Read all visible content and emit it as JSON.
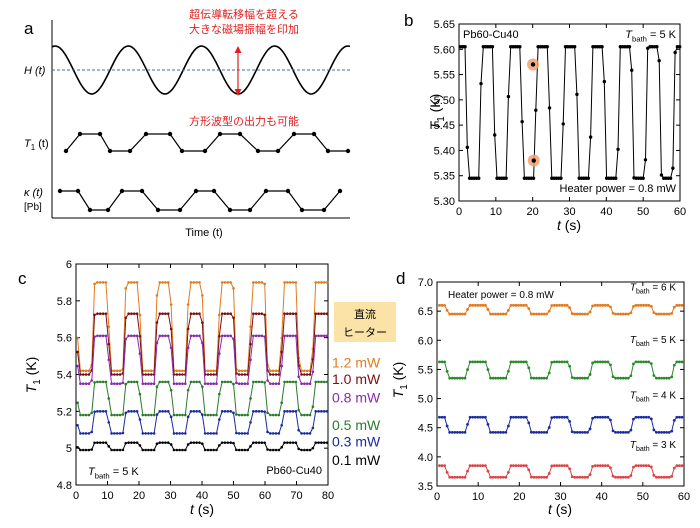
{
  "panels": {
    "a": {
      "letter": "a",
      "title": "",
      "labels": {
        "H": "H (t)",
        "T1": "T",
        "T1sub": "1",
        "T1tail": " (t)",
        "kappa": "κ (t)",
        "kappa_sub": "[Pb]",
        "xlabel": "Time (t)"
      },
      "annotations": {
        "jp1_line1": "超伝導転移幅を超える",
        "jp1_line2": "大きな磁場振幅を印加",
        "jp2": "方形波型の出力も可能"
      }
    },
    "b": {
      "letter": "b",
      "label_tl": "Pb60-Cu40",
      "label_tr": "T",
      "label_tr_sub": "bath",
      "label_tr_tail": " = 5 K",
      "note": "Heater power = 0.8 mW"
    },
    "c": {
      "letter": "c",
      "box_line1": "直流",
      "box_line2": "ヒーター",
      "tbath": "T",
      "tbath_sub": "bath",
      "tbath_tail": " = 5 K",
      "sample": "Pb60-Cu40"
    },
    "d": {
      "letter": "d",
      "note": "Heater power = 0.8 mW"
    }
  },
  "colors": {
    "annotation_red": "#e02020",
    "dashed_blue": "#3a6fb0",
    "orange": "#e07b1f",
    "darkred": "#7a1010",
    "purple": "#8a2aa8",
    "green": "#2a7a2a",
    "blue": "#1a2a9a",
    "black": "#000000",
    "green_d": "#2a8a2a",
    "blue_d": "#1a2aa0",
    "red_d": "#d94444",
    "box_fill": "#fbe3a8"
  },
  "chart_data": [
    {
      "panel": "a",
      "type": "line",
      "title": "",
      "xlabel": "Time (t)",
      "ylabel": "",
      "series": [
        {
          "name": "H (t)",
          "shape": "sinusoid"
        },
        {
          "name": "T1 (t)",
          "shape": "square wave"
        },
        {
          "name": "κ (t) [Pb]",
          "shape": "square wave"
        }
      ]
    },
    {
      "panel": "b",
      "type": "line",
      "xlabel": "t (s)",
      "ylabel": "T1 (K)",
      "xlim": [
        0,
        60
      ],
      "ylim": [
        5.3,
        5.65
      ],
      "xticks": [
        "0",
        "10",
        "20",
        "30",
        "40",
        "50",
        "60"
      ],
      "yticks": [
        "5.30",
        "5.35",
        "5.40",
        "5.45",
        "5.50",
        "5.55",
        "5.60",
        "5.65"
      ],
      "period_s": 7.5,
      "series": [
        {
          "high": 5.605,
          "low": 5.345,
          "start": 0,
          "end": 60
        }
      ],
      "highlights": [
        {
          "x": 20.1,
          "y": 5.57
        },
        {
          "x": 20.3,
          "y": 5.38
        }
      ]
    },
    {
      "panel": "c",
      "type": "line",
      "xlabel": "t (s)",
      "ylabel": "T1 (K)",
      "xlim": [
        0,
        80
      ],
      "ylim": [
        4.8,
        6.0
      ],
      "xticks": [
        "0",
        "10",
        "20",
        "30",
        "40",
        "50",
        "60",
        "70",
        "80"
      ],
      "yticks": [
        "4.8",
        "5",
        "5.2",
        "5.4",
        "5.6",
        "5.8",
        "6"
      ],
      "period_s": 10,
      "series": [
        {
          "name": "1.2 mW",
          "high": 5.9,
          "low": 5.42
        },
        {
          "name": "1.0 mW",
          "high": 5.73,
          "low": 5.4
        },
        {
          "name": "0.8 mW",
          "high": 5.61,
          "low": 5.35
        },
        {
          "name": "0.5 mW",
          "high": 5.36,
          "low": 5.18
        },
        {
          "name": "0.3 mW",
          "high": 5.2,
          "low": 5.08
        },
        {
          "name": "0.1 mW",
          "high": 5.03,
          "low": 4.99
        }
      ]
    },
    {
      "panel": "d",
      "type": "line",
      "xlabel": "t (s)",
      "ylabel": "T1 (K)",
      "xlim": [
        0,
        60
      ],
      "ylim": [
        3.5,
        7.0
      ],
      "xticks": [
        "0",
        "10",
        "20",
        "30",
        "40",
        "50",
        "60"
      ],
      "yticks": [
        "3.5",
        "4.0",
        "4.5",
        "5.0",
        "5.5",
        "6.0",
        "6.5",
        "7.0"
      ],
      "period_s": 10,
      "series": [
        {
          "name": "Tbath = 6 K",
          "high": 6.6,
          "low": 6.45
        },
        {
          "name": "Tbath = 5 K",
          "high": 5.63,
          "low": 5.35
        },
        {
          "name": "Tbath = 4 K",
          "high": 4.68,
          "low": 4.42
        },
        {
          "name": "Tbath = 3 K",
          "high": 3.85,
          "low": 3.65
        }
      ]
    }
  ]
}
